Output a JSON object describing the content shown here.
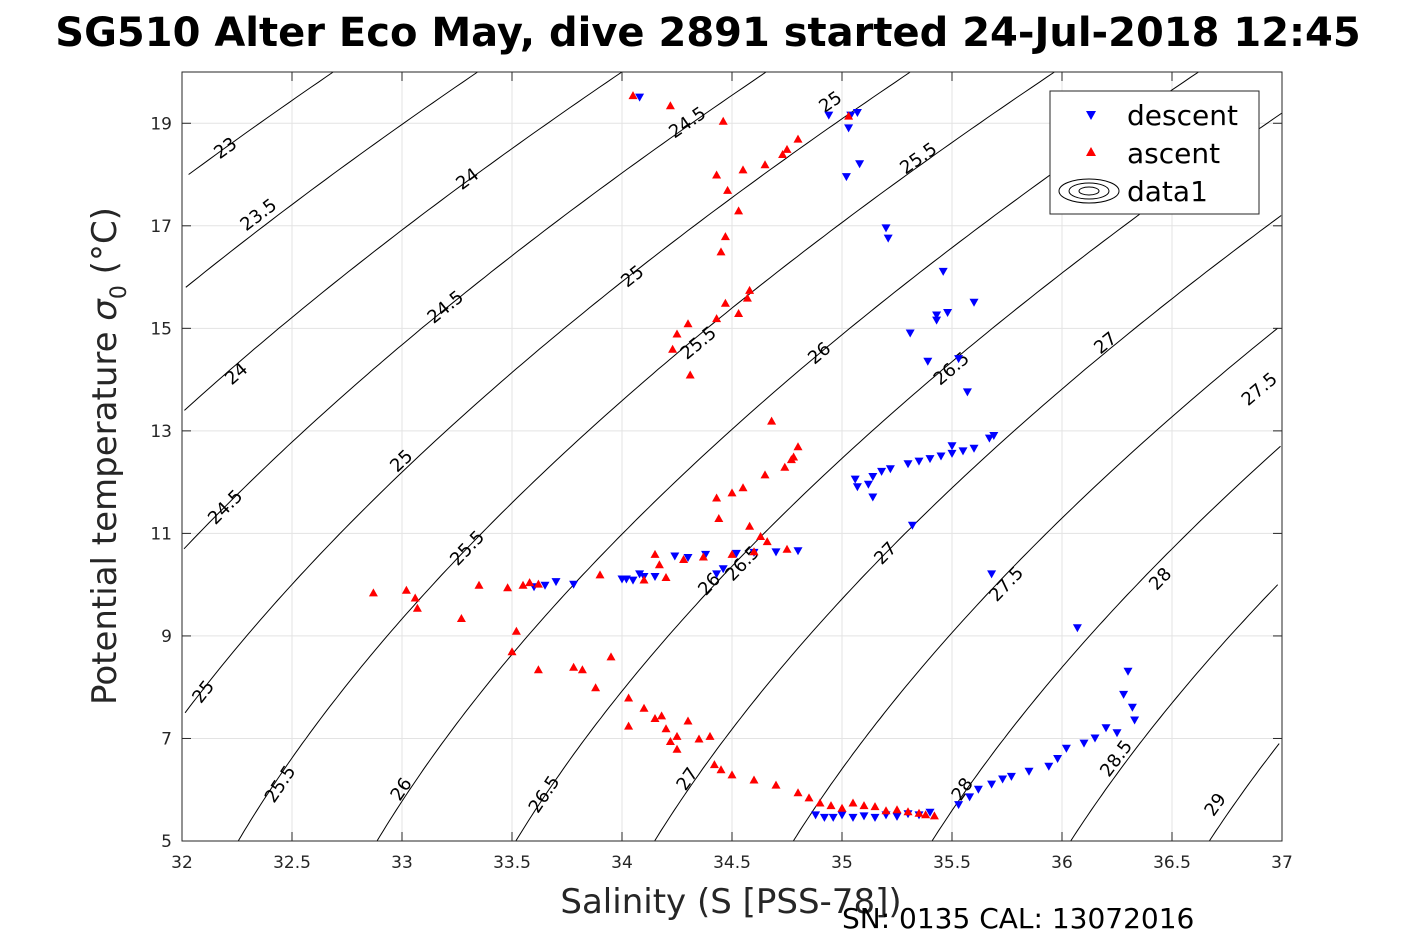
{
  "chart_data": {
    "type": "scatter",
    "title": "SG510 Alter Eco May, dive 2891 started 24-Jul-2018 12:45",
    "xlabel": "Salinity (S [PSS-78])",
    "ylabel": "Potential temperature σ₀ (°C)",
    "ylabel_parts": {
      "main": "Potential temperature ",
      "sym": "σ",
      "sub": "0",
      "tail": " (°C)"
    },
    "caption": "SN: 0135  CAL: 13072016",
    "xlim": [
      32,
      37
    ],
    "ylim": [
      5,
      20
    ],
    "xticks": [
      32,
      32.5,
      33,
      33.5,
      34,
      34.5,
      35,
      35.5,
      36,
      36.5,
      37
    ],
    "xtick_labels": [
      "32",
      "32.5",
      "33",
      "33.5",
      "34",
      "34.5",
      "35",
      "35.5",
      "36",
      "36.5",
      "37"
    ],
    "yticks": [
      5,
      7,
      9,
      11,
      13,
      15,
      17,
      19
    ],
    "ytick_labels": [
      "5",
      "7",
      "9",
      "11",
      "13",
      "15",
      "17",
      "19"
    ],
    "grid": true,
    "legend": {
      "placement": "top-right",
      "entries": [
        "descent",
        "ascent",
        "data1"
      ]
    },
    "contour_levels": [
      23,
      23.5,
      24,
      24.5,
      25,
      25.5,
      26,
      26.5,
      27,
      27.5,
      28,
      28.5,
      29
    ],
    "contour_labels": [
      {
        "text": "23",
        "x": 32.2,
        "y": 18.5
      },
      {
        "text": "23.5",
        "x": 32.35,
        "y": 17.2
      },
      {
        "text": "24",
        "x": 33.3,
        "y": 17.9
      },
      {
        "text": "24",
        "x": 32.25,
        "y": 14.1
      },
      {
        "text": "24.5",
        "x": 34.3,
        "y": 19.0
      },
      {
        "text": "24.5",
        "x": 33.2,
        "y": 15.4
      },
      {
        "text": "24.5",
        "x": 32.2,
        "y": 11.5
      },
      {
        "text": "25",
        "x": 34.95,
        "y": 19.4
      },
      {
        "text": "25",
        "x": 34.05,
        "y": 16.0
      },
      {
        "text": "25",
        "x": 33.0,
        "y": 12.4
      },
      {
        "text": "25",
        "x": 32.1,
        "y": 7.9
      },
      {
        "text": "25.5",
        "x": 35.35,
        "y": 18.3
      },
      {
        "text": "25.5",
        "x": 34.35,
        "y": 14.7
      },
      {
        "text": "25.5",
        "x": 33.3,
        "y": 10.7
      },
      {
        "text": "25.5",
        "x": 32.45,
        "y": 6.1
      },
      {
        "text": "26",
        "x": 34.4,
        "y": 10.0
      },
      {
        "text": "26",
        "x": 34.9,
        "y": 14.5
      },
      {
        "text": "26",
        "x": 33.0,
        "y": 6.0
      },
      {
        "text": "26.5",
        "x": 34.55,
        "y": 10.4
      },
      {
        "text": "26.5",
        "x": 35.5,
        "y": 14.2
      },
      {
        "text": "26.5",
        "x": 33.65,
        "y": 5.9
      },
      {
        "text": "27",
        "x": 35.2,
        "y": 10.6
      },
      {
        "text": "27",
        "x": 36.2,
        "y": 14.7
      },
      {
        "text": "27",
        "x": 34.3,
        "y": 6.2
      },
      {
        "text": "27.5",
        "x": 35.75,
        "y": 10.0
      },
      {
        "text": "27.5",
        "x": 36.9,
        "y": 13.8
      },
      {
        "text": "28",
        "x": 36.45,
        "y": 10.1
      },
      {
        "text": "28",
        "x": 35.55,
        "y": 6.0
      },
      {
        "text": "28.5",
        "x": 36.25,
        "y": 6.6
      },
      {
        "text": "29",
        "x": 36.7,
        "y": 5.7
      }
    ],
    "series": [
      {
        "name": "descent",
        "marker": "triangle-down",
        "color": "#0000ff",
        "x": [
          34.08,
          34.94,
          35.04,
          35.03,
          35.08,
          35.02,
          35.07,
          35.21,
          35.2,
          35.46,
          35.6,
          35.48,
          35.43,
          35.39,
          35.31,
          35.43,
          35.53,
          35.57,
          35.67,
          35.5,
          35.06,
          35.12,
          35.14,
          35.18,
          35.22,
          35.3,
          35.35,
          35.4,
          35.45,
          35.5,
          35.55,
          35.6,
          35.69,
          35.07,
          35.14,
          35.32,
          34.8,
          34.7,
          34.6,
          34.52,
          34.46,
          34.43,
          34.24,
          34.15,
          34.08,
          34.02,
          33.78,
          33.7,
          33.6,
          33.65,
          34.0,
          34.05,
          34.1,
          34.3,
          34.38,
          35.68,
          36.07,
          36.3,
          36.32,
          36.33,
          36.28,
          36.25,
          36.2,
          36.15,
          36.1,
          36.02,
          35.98,
          35.94,
          35.85,
          35.77,
          35.73,
          35.68,
          35.62,
          35.58,
          35.53,
          34.88,
          34.92,
          34.96,
          35.0,
          35.05,
          35.1,
          35.15,
          35.2,
          35.25,
          35.3,
          35.35,
          35.4
        ],
        "y": [
          19.5,
          19.15,
          19.15,
          18.9,
          18.2,
          17.95,
          19.2,
          16.75,
          16.95,
          16.1,
          15.5,
          15.3,
          15.25,
          14.35,
          14.9,
          15.15,
          14.4,
          13.75,
          12.85,
          12.7,
          12.05,
          11.95,
          12.1,
          12.2,
          12.25,
          12.35,
          12.4,
          12.45,
          12.5,
          12.55,
          12.6,
          12.65,
          12.9,
          11.9,
          11.7,
          11.15,
          10.65,
          10.63,
          10.62,
          10.6,
          10.3,
          10.2,
          10.55,
          10.15,
          10.2,
          10.1,
          10.0,
          10.05,
          9.95,
          9.98,
          10.1,
          10.08,
          10.15,
          10.52,
          10.58,
          10.2,
          9.15,
          8.3,
          7.6,
          7.35,
          7.85,
          7.1,
          7.2,
          7.0,
          6.9,
          6.8,
          6.6,
          6.45,
          6.35,
          6.25,
          6.2,
          6.1,
          6.0,
          5.85,
          5.7,
          5.5,
          5.45,
          5.45,
          5.5,
          5.45,
          5.48,
          5.45,
          5.5,
          5.47,
          5.52,
          5.5,
          5.55
        ]
      },
      {
        "name": "ascent",
        "marker": "triangle-up",
        "color": "#ff0000",
        "x": [
          34.05,
          34.22,
          34.46,
          35.03,
          34.8,
          34.75,
          34.73,
          34.65,
          34.55,
          34.43,
          34.48,
          34.53,
          34.47,
          34.45,
          34.47,
          34.58,
          34.57,
          34.53,
          34.43,
          34.3,
          34.25,
          34.23,
          34.31,
          34.68,
          34.77,
          34.8,
          34.78,
          34.74,
          34.65,
          34.55,
          34.5,
          34.43,
          34.44,
          34.58,
          34.63,
          34.66,
          34.75,
          34.6,
          34.5,
          34.37,
          34.28,
          34.15,
          34.17,
          34.2,
          34.1,
          33.9,
          32.87,
          33.02,
          33.06,
          33.07,
          33.27,
          33.35,
          33.48,
          33.55,
          33.58,
          33.62,
          33.52,
          33.5,
          33.62,
          33.78,
          33.82,
          33.88,
          33.95,
          34.03,
          34.1,
          34.15,
          34.2,
          34.25,
          34.3,
          34.35,
          34.4,
          34.03,
          34.18,
          34.22,
          34.25,
          34.42,
          34.45,
          34.5,
          34.6,
          34.7,
          34.8,
          34.85,
          34.9,
          34.95,
          35.0,
          35.05,
          35.1,
          35.15,
          35.2,
          35.25,
          35.3,
          35.35,
          35.38,
          35.42
        ],
        "y": [
          19.55,
          19.35,
          19.05,
          19.15,
          18.7,
          18.5,
          18.4,
          18.2,
          18.1,
          18.0,
          17.7,
          17.3,
          16.8,
          16.5,
          15.5,
          15.75,
          15.6,
          15.3,
          15.2,
          15.1,
          14.9,
          14.6,
          14.1,
          13.2,
          12.45,
          12.7,
          12.5,
          12.3,
          12.15,
          11.9,
          11.8,
          11.7,
          11.3,
          11.15,
          10.95,
          10.85,
          10.7,
          10.65,
          10.6,
          10.55,
          10.5,
          10.6,
          10.4,
          10.15,
          10.1,
          10.2,
          9.85,
          9.9,
          9.75,
          9.55,
          9.35,
          10.0,
          9.95,
          10.0,
          10.05,
          10.02,
          9.1,
          8.7,
          8.35,
          8.4,
          8.35,
          8.0,
          8.6,
          7.8,
          7.6,
          7.4,
          7.2,
          7.05,
          7.35,
          7.0,
          7.05,
          7.25,
          7.45,
          6.95,
          6.8,
          6.5,
          6.4,
          6.3,
          6.2,
          6.1,
          5.95,
          5.85,
          5.75,
          5.7,
          5.65,
          5.75,
          5.7,
          5.68,
          5.6,
          5.62,
          5.58,
          5.55,
          5.52,
          5.5
        ]
      }
    ]
  }
}
